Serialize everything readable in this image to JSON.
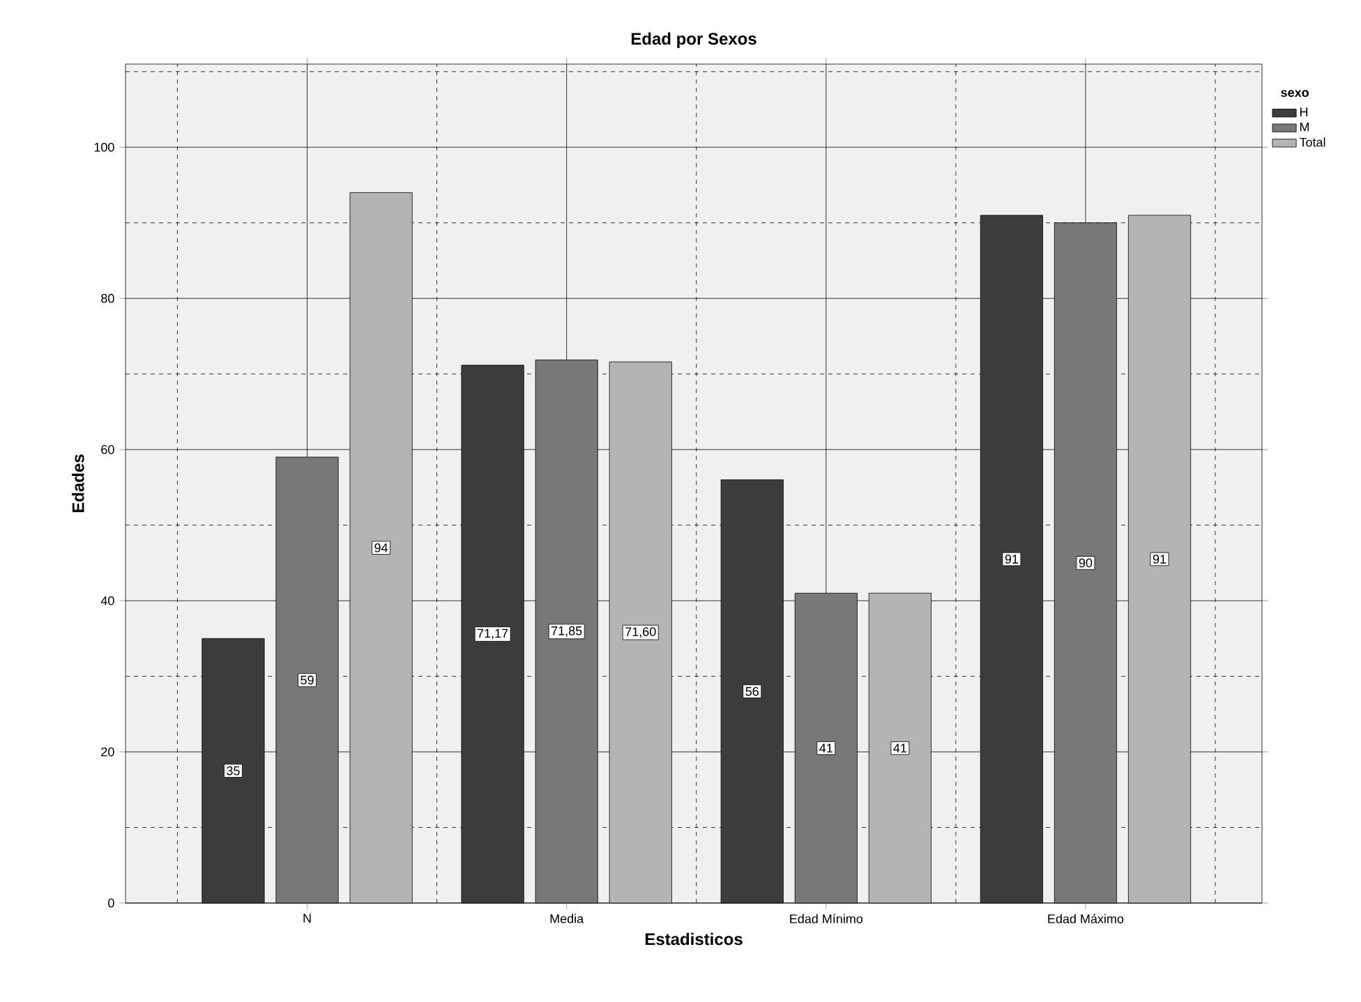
{
  "chart_data": {
    "type": "bar",
    "title": "Edad por Sexos",
    "xlabel": "Estadisticos",
    "ylabel": "Edades",
    "legend_title": "sexo",
    "categories": [
      "N",
      "Media",
      "Edad Mínimo",
      "Edad Máximo"
    ],
    "series": [
      {
        "name": "H",
        "color": "#3c3c3c",
        "values": [
          35,
          71.17,
          56,
          91
        ],
        "value_labels": [
          "35",
          "71,17",
          "56",
          "91"
        ]
      },
      {
        "name": "M",
        "color": "#787878",
        "values": [
          59,
          71.85,
          41,
          90
        ],
        "value_labels": [
          "59",
          "71,85",
          "41",
          "90"
        ]
      },
      {
        "name": "Total",
        "color": "#b4b4b4",
        "values": [
          94,
          71.6,
          41,
          91
        ],
        "value_labels": [
          "94",
          "71,60",
          "41",
          "91"
        ]
      }
    ],
    "ylim": [
      0,
      111
    ],
    "yticks": [
      0,
      20,
      40,
      60,
      80,
      100
    ],
    "grid": true,
    "legend": "top right"
  }
}
